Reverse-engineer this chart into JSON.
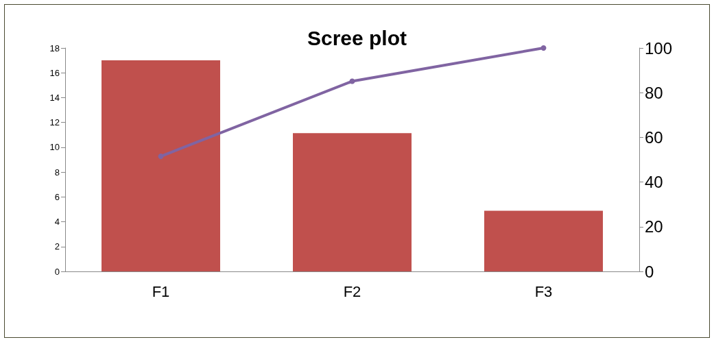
{
  "chart_data": {
    "type": "bar",
    "title": "Scree plot",
    "categories": [
      "F1",
      "F2",
      "F3"
    ],
    "series": [
      {
        "color": "#c0504d",
        "values": [
          17,
          11.14,
          4.88
        ]
      },
      {
        "type": "line",
        "axis": "y2",
        "color": "#8064a2",
        "values": [
          51.5,
          85.1,
          100
        ]
      }
    ],
    "ylim": [
      0,
      18
    ],
    "yticks": [
      0,
      2,
      4,
      6,
      8,
      10,
      12,
      14,
      16,
      18
    ],
    "y2lim": [
      0,
      100
    ],
    "y2ticks": [
      0,
      20,
      40,
      60,
      80,
      100
    ],
    "grid": false,
    "marker": "circle",
    "line_style": "solid"
  }
}
